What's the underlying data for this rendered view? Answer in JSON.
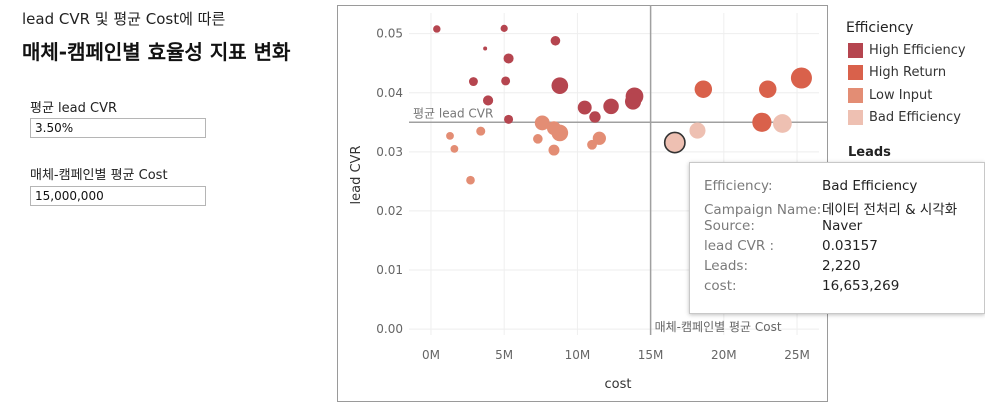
{
  "header": {
    "subtitle": "lead CVR 및 평균 Cost에 따른",
    "title": "매체-캠페인별 효율성 지표 변화"
  },
  "params": [
    {
      "label": "평균 lead CVR",
      "value": "3.50%"
    },
    {
      "label": "매체-캠페인별 평균 Cost",
      "value": "15,000,000"
    }
  ],
  "legend": {
    "title": "Efficiency",
    "items": [
      {
        "label": "High Efficiency",
        "color": "#b5454f"
      },
      {
        "label": "High Return",
        "color": "#d9614b"
      },
      {
        "label": "Low Input",
        "color": "#e38d74"
      },
      {
        "label": "Bad Efficiency",
        "color": "#eec0b2"
      }
    ],
    "size_title": "Leads"
  },
  "tooltip": {
    "rows": [
      {
        "key": "Efficiency:",
        "value": "Bad Efficiency"
      },
      {
        "key": "Campaign Name:",
        "value": "데이터 전처리 & 시각화"
      },
      {
        "key": "Source:",
        "value": "Naver"
      },
      {
        "key": "lead CVR :",
        "value": "0.03157"
      },
      {
        "key": "Leads:",
        "value": "2,220"
      },
      {
        "key": "cost:",
        "value": "16,653,269"
      }
    ]
  },
  "chart_data": {
    "type": "scatter",
    "xlabel": "cost",
    "ylabel": "lead CVR",
    "xlim": [
      -1500000,
      26500000
    ],
    "ylim": [
      -0.001,
      0.0535
    ],
    "x_ticks": [
      {
        "v": 0,
        "label": "0M"
      },
      {
        "v": 5000000,
        "label": "5M"
      },
      {
        "v": 10000000,
        "label": "10M"
      },
      {
        "v": 15000000,
        "label": "15M"
      },
      {
        "v": 20000000,
        "label": "20M"
      },
      {
        "v": 25000000,
        "label": "25M"
      }
    ],
    "y_ticks": [
      {
        "v": 0.0,
        "label": "0.00"
      },
      {
        "v": 0.01,
        "label": "0.01"
      },
      {
        "v": 0.02,
        "label": "0.02"
      },
      {
        "v": 0.03,
        "label": "0.03"
      },
      {
        "v": 0.04,
        "label": "0.04"
      },
      {
        "v": 0.05,
        "label": "0.05"
      }
    ],
    "grid": true,
    "reference_lines": {
      "x": {
        "value": 15000000,
        "label": "매체-캠페인별 평균 Cost"
      },
      "y": {
        "value": 0.035,
        "label": "평균 lead CVR"
      }
    },
    "categories": {
      "High Efficiency": "#b5454f",
      "High Return": "#d9614b",
      "Low Input": "#e38d74",
      "Bad Efficiency": "#eec0b2"
    },
    "points": [
      {
        "x": 400000,
        "y": 0.0508,
        "c": "High Efficiency",
        "leads": 300
      },
      {
        "x": 5000000,
        "y": 0.0509,
        "c": "High Efficiency",
        "leads": 280
      },
      {
        "x": 8500000,
        "y": 0.0488,
        "c": "High Efficiency",
        "leads": 500
      },
      {
        "x": 3700000,
        "y": 0.0475,
        "c": "High Efficiency",
        "leads": 60
      },
      {
        "x": 5300000,
        "y": 0.0458,
        "c": "High Efficiency",
        "leads": 550
      },
      {
        "x": 2900000,
        "y": 0.0419,
        "c": "High Efficiency",
        "leads": 430
      },
      {
        "x": 5100000,
        "y": 0.042,
        "c": "High Efficiency",
        "leads": 430
      },
      {
        "x": 8800000,
        "y": 0.0412,
        "c": "High Efficiency",
        "leads": 1500
      },
      {
        "x": 3900000,
        "y": 0.0387,
        "c": "High Efficiency",
        "leads": 560
      },
      {
        "x": 10500000,
        "y": 0.0375,
        "c": "High Efficiency",
        "leads": 1050
      },
      {
        "x": 11200000,
        "y": 0.0359,
        "c": "High Efficiency",
        "leads": 700
      },
      {
        "x": 12300000,
        "y": 0.0377,
        "c": "High Efficiency",
        "leads": 1300
      },
      {
        "x": 13900000,
        "y": 0.0394,
        "c": "High Efficiency",
        "leads": 1700
      },
      {
        "x": 13800000,
        "y": 0.0385,
        "c": "High Efficiency",
        "leads": 1400
      },
      {
        "x": 5300000,
        "y": 0.0355,
        "c": "High Efficiency",
        "leads": 440
      },
      {
        "x": 18600000,
        "y": 0.0406,
        "c": "High Return",
        "leads": 1650
      },
      {
        "x": 23000000,
        "y": 0.0406,
        "c": "High Return",
        "leads": 1650
      },
      {
        "x": 25300000,
        "y": 0.0425,
        "c": "High Return",
        "leads": 2400
      },
      {
        "x": 22600000,
        "y": 0.035,
        "c": "High Return",
        "leads": 2000
      },
      {
        "x": 7600000,
        "y": 0.0349,
        "c": "Low Input",
        "leads": 1200
      },
      {
        "x": 8400000,
        "y": 0.034,
        "c": "Low Input",
        "leads": 1050
      },
      {
        "x": 8800000,
        "y": 0.0332,
        "c": "Low Input",
        "leads": 1500
      },
      {
        "x": 3400000,
        "y": 0.0335,
        "c": "Low Input",
        "leads": 440
      },
      {
        "x": 1300000,
        "y": 0.0327,
        "c": "Low Input",
        "leads": 330
      },
      {
        "x": 7300000,
        "y": 0.0322,
        "c": "Low Input",
        "leads": 500
      },
      {
        "x": 11500000,
        "y": 0.0323,
        "c": "Low Input",
        "leads": 950
      },
      {
        "x": 11000000,
        "y": 0.0312,
        "c": "Low Input",
        "leads": 520
      },
      {
        "x": 1600000,
        "y": 0.0305,
        "c": "Low Input",
        "leads": 330
      },
      {
        "x": 8400000,
        "y": 0.0303,
        "c": "Low Input",
        "leads": 650
      },
      {
        "x": 2700000,
        "y": 0.0252,
        "c": "Low Input",
        "leads": 400
      },
      {
        "x": 18200000,
        "y": 0.0336,
        "c": "Bad Efficiency",
        "leads": 1400
      },
      {
        "x": 24000000,
        "y": 0.0348,
        "c": "Bad Efficiency",
        "leads": 1900
      },
      {
        "x": 16653269,
        "y": 0.03157,
        "c": "Bad Efficiency",
        "leads": 2220,
        "highlight": true
      }
    ]
  }
}
